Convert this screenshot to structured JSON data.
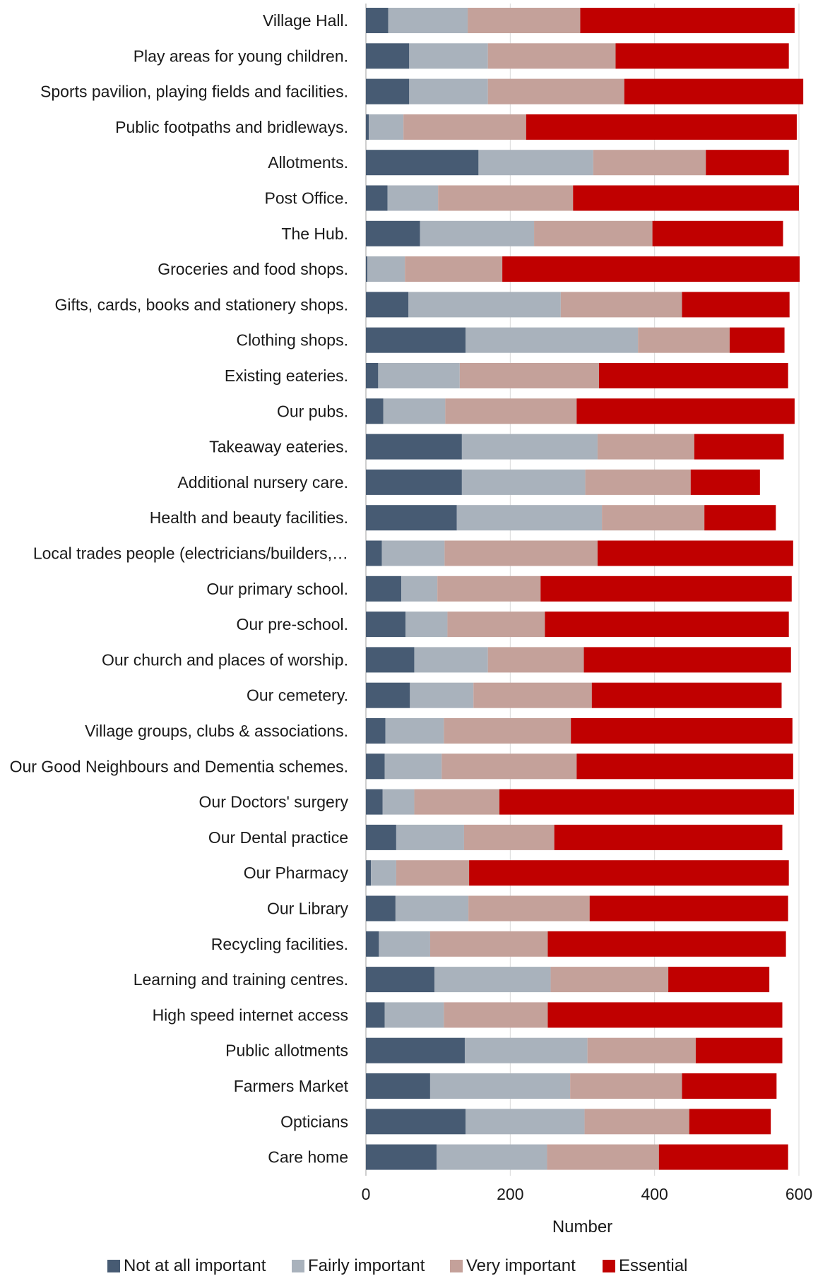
{
  "chart_data": {
    "type": "bar",
    "orientation": "horizontal",
    "stacked": true,
    "title": "",
    "xlabel": "Number",
    "ylabel": "",
    "xlim": [
      0,
      600
    ],
    "xticks": [
      0,
      200,
      400,
      600
    ],
    "grid": "vertical",
    "legend_position": "bottom",
    "categories": [
      "Village Hall.",
      "Play areas for young children.",
      "Sports pavilion, playing fields and facilities.",
      "Public footpaths and bridleways.",
      "Allotments.",
      "Post Office.",
      "The Hub.",
      "Groceries and food shops.",
      "Gifts, cards, books and stationery shops.",
      "Clothing shops.",
      "Existing eateries.",
      "Our pubs.",
      "Takeaway eateries.",
      "Additional nursery care.",
      "Health and beauty facilities.",
      "Local trades people (electricians/builders,…",
      "Our primary school.",
      "Our pre-school.",
      "Our church and places of worship.",
      "Our cemetery.",
      "Village groups, clubs & associations.",
      "Our Good Neighbours and Dementia schemes.",
      "Our Doctors' surgery",
      "Our Dental practice",
      "Our Pharmacy",
      "Our Library",
      "Recycling facilities.",
      "Learning and training centres.",
      "High speed internet access",
      "Public allotments",
      "Farmers Market",
      "Opticians",
      "Care home"
    ],
    "series": [
      {
        "name": "Not at all important",
        "color": "#475b73",
        "values": [
          31,
          60,
          60,
          4,
          156,
          30,
          75,
          2,
          59,
          138,
          17,
          24,
          133,
          133,
          126,
          22,
          49,
          55,
          67,
          61,
          27,
          26,
          23,
          42,
          7,
          41,
          18,
          95,
          26,
          137,
          89,
          138,
          98
        ]
      },
      {
        "name": "Fairly important",
        "color": "#a9b2bc",
        "values": [
          110,
          109,
          109,
          48,
          159,
          70,
          158,
          52,
          211,
          239,
          113,
          86,
          188,
          171,
          201,
          87,
          50,
          58,
          102,
          88,
          81,
          79,
          44,
          94,
          35,
          101,
          71,
          161,
          82,
          170,
          194,
          165,
          153
        ]
      },
      {
        "name": "Very important",
        "color": "#c4a19a",
        "values": [
          156,
          177,
          189,
          170,
          156,
          187,
          164,
          135,
          168,
          127,
          193,
          182,
          134,
          146,
          142,
          212,
          143,
          135,
          133,
          164,
          176,
          187,
          118,
          125,
          101,
          168,
          163,
          163,
          144,
          150,
          155,
          145,
          155
        ]
      },
      {
        "name": "Essential",
        "color": "#c00000",
        "values": [
          297,
          240,
          248,
          375,
          115,
          313,
          181,
          412,
          149,
          76,
          262,
          302,
          124,
          96,
          99,
          271,
          348,
          338,
          287,
          263,
          307,
          300,
          408,
          316,
          443,
          275,
          330,
          140,
          325,
          120,
          131,
          113,
          179
        ]
      }
    ]
  }
}
